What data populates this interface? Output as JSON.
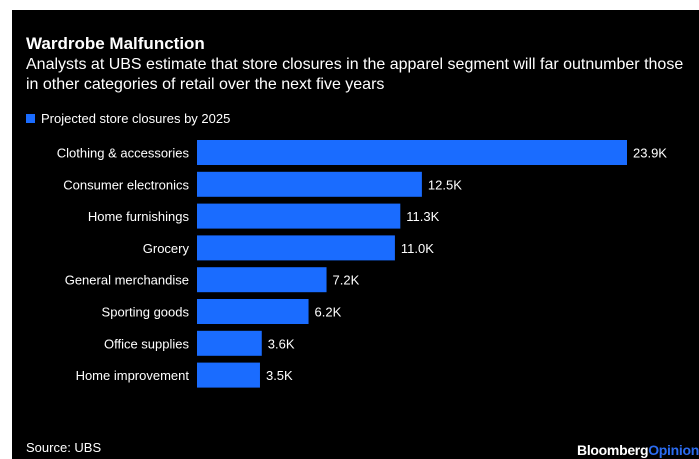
{
  "title": "Wardrobe Malfunction",
  "subtitle": "Analysts at UBS estimate that store closures in the apparel segment will far outnumber those in other categories of retail over the next five years",
  "source": "Source: UBS",
  "brand": {
    "part1": "Bloomberg",
    "part2": "Opinion"
  },
  "colors": {
    "bar": "#1a6cff",
    "background": "#000000",
    "brand_accent": "#2b6cf2"
  },
  "chart_data": {
    "type": "bar",
    "orientation": "horizontal",
    "title": "Wardrobe Malfunction",
    "legend_position": "top-left",
    "grid": false,
    "xlim": [
      0,
      23.9
    ],
    "categories": [
      "Clothing & accessories",
      "Consumer electronics",
      "Home furnishings",
      "Grocery",
      "General merchandise",
      "Sporting goods",
      "Office supplies",
      "Home improvement"
    ],
    "series": [
      {
        "name": "Projected store closures by 2025",
        "values": [
          23.9,
          12.5,
          11.3,
          11.0,
          7.2,
          6.2,
          3.6,
          3.5
        ],
        "labels": [
          "23.9K",
          "12.5K",
          "11.3K",
          "11.0K",
          "7.2K",
          "6.2K",
          "3.6K",
          "3.5K"
        ]
      }
    ]
  }
}
